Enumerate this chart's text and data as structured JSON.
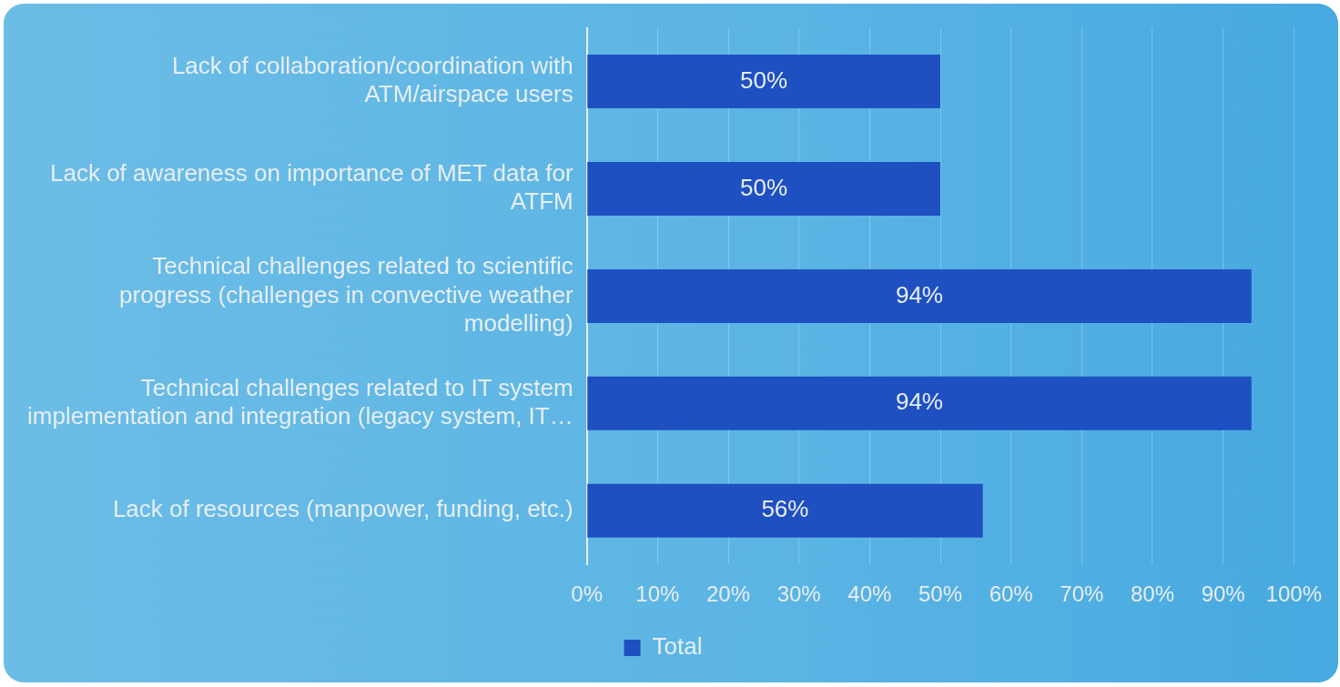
{
  "chart_data": {
    "type": "bar",
    "orientation": "horizontal",
    "categories": [
      "Lack of collaboration/coordination with ATM/airspace users",
      "Lack of awareness on importance of MET data for ATFM",
      "Technical challenges related to scientific progress (challenges in convective weather modelling)",
      "Technical challenges related to IT system implementation and integration (legacy system, IT…",
      "Lack of resources (manpower, funding, etc.)"
    ],
    "series": [
      {
        "name": "Total",
        "color": "#1f50c2",
        "values": [
          50,
          50,
          94,
          94,
          56
        ],
        "value_labels": [
          "50%",
          "50%",
          "94%",
          "94%",
          "56%"
        ]
      }
    ],
    "xlim": [
      0,
      100
    ],
    "xticks": [
      {
        "value": 0,
        "label": "0%"
      },
      {
        "value": 10,
        "label": "10%"
      },
      {
        "value": 20,
        "label": "20%"
      },
      {
        "value": 30,
        "label": "30%"
      },
      {
        "value": 40,
        "label": "40%"
      },
      {
        "value": 50,
        "label": "50%"
      },
      {
        "value": 60,
        "label": "60%"
      },
      {
        "value": 70,
        "label": "70%"
      },
      {
        "value": 80,
        "label": "80%"
      },
      {
        "value": 90,
        "label": "90%"
      },
      {
        "value": 100,
        "label": "100%"
      }
    ],
    "grid": "x",
    "legend": "bottom"
  }
}
